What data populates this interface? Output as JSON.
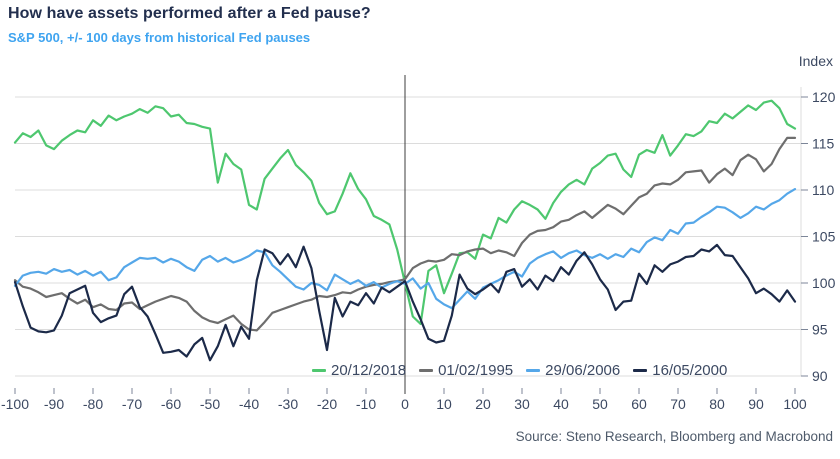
{
  "header": {
    "title": "How have assets performed after a Fed pause?",
    "subtitle": "S&P 500, +/- 100 days from historical Fed pauses"
  },
  "footer": {
    "source": "Source: Steno Research, Bloomberg and Macrobond"
  },
  "colors": {
    "title": "#222f4e",
    "subtitle": "#3fa4f0",
    "axis_text": "#3c4962",
    "source_text": "#4e5a6a",
    "gridline": "#dcdcdc",
    "tick": "#7c8698",
    "zero_line": "#3d3d3d",
    "background": "#ffffff"
  },
  "chart_data": {
    "type": "line",
    "title": "How have assets performed after a Fed pause?",
    "subtitle": "S&P 500, +/- 100 days from historical Fed pauses",
    "ylabel": "Index",
    "xlabel": "",
    "xlim": [
      -100,
      100
    ],
    "ylim": [
      88,
      122
    ],
    "x_ticks": [
      -100,
      -90,
      -80,
      -70,
      -60,
      -50,
      -40,
      -30,
      -20,
      -10,
      0,
      10,
      20,
      30,
      40,
      50,
      60,
      70,
      80,
      90,
      100
    ],
    "y_ticks": [
      90,
      95,
      100,
      105,
      110,
      115,
      120
    ],
    "grid": true,
    "zero_reference_line": true,
    "legend_position": "bottom",
    "x_start": -100,
    "x_step": 2,
    "series": [
      {
        "name": "20/12/2018",
        "color": "#4ec76f",
        "values": [
          115.1,
          116.1,
          115.7,
          116.4,
          114.8,
          114.4,
          115.3,
          115.9,
          116.4,
          116.2,
          117.5,
          116.9,
          118.0,
          117.5,
          117.9,
          118.2,
          118.7,
          118.3,
          119.0,
          118.8,
          117.9,
          118.1,
          117.2,
          117.1,
          116.8,
          116.6,
          110.8,
          113.9,
          112.8,
          112.2,
          108.4,
          107.9,
          111.2,
          112.3,
          113.4,
          114.3,
          112.7,
          111.9,
          111.0,
          108.6,
          107.4,
          107.7,
          109.6,
          111.8,
          110.1,
          109.0,
          107.2,
          106.8,
          106.3,
          103.6,
          100.0,
          96.4,
          95.6,
          101.3,
          101.9,
          98.9,
          101.0,
          103.2,
          103.3,
          102.6,
          105.2,
          104.8,
          107.0,
          106.5,
          107.9,
          108.8,
          108.4,
          107.9,
          106.9,
          108.6,
          109.8,
          110.6,
          111.1,
          110.6,
          112.3,
          112.9,
          113.7,
          113.9,
          112.2,
          111.4,
          113.8,
          114.3,
          114.0,
          115.9,
          113.7,
          114.8,
          116.0,
          115.8,
          116.3,
          117.4,
          117.2,
          118.2,
          117.7,
          118.4,
          119.1,
          118.6,
          119.4,
          119.6,
          118.8,
          117.1,
          116.6
        ]
      },
      {
        "name": "01/02/1995",
        "color": "#6e6e6e",
        "values": [
          100.3,
          99.6,
          99.4,
          99.0,
          98.5,
          98.7,
          98.9,
          98.3,
          97.8,
          98.2,
          97.4,
          97.7,
          97.2,
          97.1,
          97.8,
          97.9,
          97.2,
          97.6,
          98.0,
          98.3,
          98.6,
          98.4,
          98.0,
          97.0,
          96.3,
          95.9,
          95.7,
          96.1,
          96.5,
          95.6,
          95.0,
          94.9,
          95.8,
          96.8,
          97.1,
          97.4,
          97.7,
          98.0,
          98.2,
          98.6,
          98.5,
          98.7,
          99.0,
          98.9,
          99.3,
          99.6,
          99.8,
          99.9,
          100.1,
          100.2,
          100.4,
          101.6,
          102.1,
          102.4,
          102.3,
          102.5,
          103.1,
          103.0,
          103.4,
          103.6,
          103.7,
          103.2,
          103.5,
          103.3,
          102.9,
          104.3,
          105.2,
          105.6,
          105.7,
          106.0,
          106.6,
          106.8,
          107.3,
          107.7,
          107.0,
          107.7,
          108.4,
          108.0,
          107.4,
          108.3,
          109.2,
          109.6,
          110.5,
          110.7,
          110.6,
          111.1,
          111.9,
          112.0,
          112.1,
          110.8,
          111.7,
          112.3,
          111.6,
          113.2,
          113.8,
          113.3,
          112.0,
          112.8,
          114.4,
          115.6,
          115.6
        ]
      },
      {
        "name": "29/06/2006",
        "color": "#55a7e9",
        "values": [
          99.7,
          100.8,
          101.1,
          101.2,
          101.0,
          101.5,
          101.2,
          101.4,
          100.9,
          101.3,
          100.8,
          101.2,
          100.3,
          100.6,
          101.7,
          102.2,
          102.7,
          102.6,
          102.7,
          102.2,
          102.6,
          102.3,
          101.7,
          101.3,
          102.5,
          102.9,
          102.3,
          102.7,
          102.2,
          102.5,
          102.9,
          103.5,
          103.3,
          101.9,
          101.2,
          100.4,
          99.6,
          99.3,
          100.0,
          99.8,
          99.2,
          100.9,
          100.4,
          99.9,
          100.3,
          99.7,
          100.1,
          99.5,
          99.9,
          100.2,
          99.9,
          100.5,
          99.4,
          100.0,
          98.3,
          97.7,
          97.3,
          98.2,
          99.1,
          98.3,
          99.5,
          99.9,
          100.3,
          100.8,
          101.2,
          100.7,
          102.1,
          102.7,
          103.1,
          103.4,
          102.7,
          103.2,
          103.5,
          103.0,
          102.7,
          103.1,
          102.6,
          103.1,
          102.8,
          103.7,
          103.3,
          104.4,
          104.9,
          104.6,
          105.7,
          105.3,
          106.4,
          106.5,
          107.1,
          107.6,
          108.2,
          108.1,
          107.6,
          107.0,
          107.5,
          108.2,
          107.9,
          108.5,
          108.9,
          109.6,
          110.1
        ]
      },
      {
        "name": "16/05/2000",
        "color": "#1c2a49",
        "values": [
          100.1,
          97.5,
          95.2,
          94.8,
          94.7,
          94.9,
          96.5,
          98.9,
          99.3,
          99.7,
          96.8,
          95.8,
          96.2,
          96.5,
          98.8,
          99.6,
          97.4,
          96.4,
          94.5,
          92.5,
          92.6,
          92.8,
          92.1,
          93.4,
          94.1,
          91.7,
          93.2,
          95.5,
          93.2,
          95.3,
          94.0,
          100.3,
          103.6,
          103.2,
          102.0,
          103.1,
          101.7,
          103.9,
          101.6,
          97.0,
          92.8,
          98.4,
          96.4,
          98.0,
          97.6,
          98.9,
          97.8,
          99.5,
          99.0,
          99.6,
          100.2,
          98.0,
          96.1,
          94.0,
          93.6,
          93.8,
          96.5,
          100.9,
          99.4,
          98.8,
          99.3,
          99.9,
          99.0,
          101.2,
          101.5,
          99.6,
          100.4,
          99.3,
          100.8,
          100.2,
          101.7,
          100.9,
          102.4,
          103.3,
          102.0,
          100.4,
          99.3,
          97.1,
          98.0,
          98.1,
          101.0,
          99.9,
          101.9,
          101.2,
          102.0,
          102.3,
          102.8,
          102.9,
          103.6,
          103.4,
          104.1,
          103.0,
          102.9,
          101.7,
          100.5,
          98.9,
          99.4,
          98.8,
          98.0,
          99.2,
          98.0
        ]
      }
    ]
  }
}
